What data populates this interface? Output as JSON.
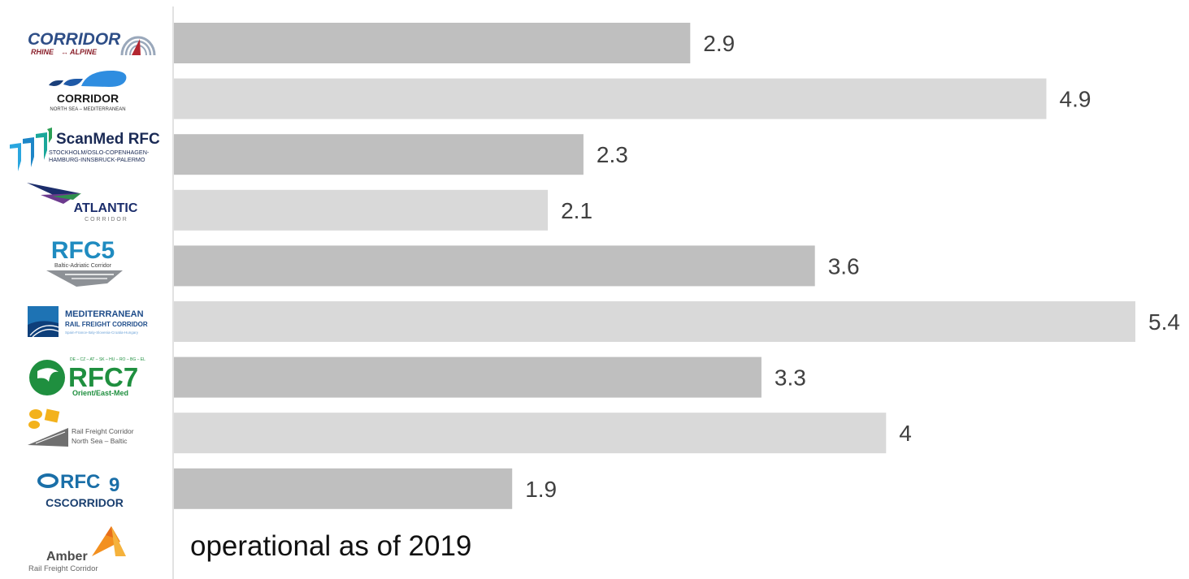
{
  "chart_data": {
    "type": "bar",
    "orientation": "horizontal",
    "categories": [
      "CORRIDOR RHINE-ALPINE",
      "CORRIDOR NORTH SEA - MEDITERRANEAN",
      "ScanMed RFC",
      "ATLANTIC CORRIDOR",
      "RFC5",
      "MEDITERRANEAN RAIL FREIGHT CORRIDOR",
      "RFC7",
      "Rail Freight Corridor North Sea – Baltic",
      "RFC9",
      "Amber Rail Freight Corridor"
    ],
    "values": [
      2.9,
      4.9,
      2.3,
      2.1,
      3.6,
      5.4,
      3.3,
      4,
      1.9,
      null
    ],
    "value_labels": [
      "2.9",
      "4.9",
      "2.3",
      "2.1",
      "3.6",
      "5.4",
      "3.3",
      "4",
      "1.9",
      ""
    ],
    "xlim": [
      0,
      5.4
    ],
    "grid": false,
    "bar_colors": [
      "#bfbfbf",
      "#d9d9d9"
    ],
    "title": "",
    "xlabel": "",
    "ylabel": ""
  },
  "note": "operational as of 2019",
  "logos": [
    {
      "icon": "rhine-alpine-logo",
      "lines": [
        "CORRIDOR",
        "RHINE",
        "ALPINE"
      ]
    },
    {
      "icon": "north-sea-med-logo",
      "lines": [
        "CORRIDOR",
        "NORTH SEA – MEDITERRANEAN"
      ]
    },
    {
      "icon": "scanmed-logo",
      "lines": [
        "ScanMed RFC",
        "STOCKHOLM/OSLO-COPENHAGEN-",
        "HAMBURG-INNSBRUCK-PALERMO"
      ]
    },
    {
      "icon": "atlantic-logo",
      "lines": [
        "ATLANTIC",
        "C O R R I D O R"
      ]
    },
    {
      "icon": "rfc5-logo",
      "lines": [
        "RFC5",
        "Baltic-Adriatic Corridor"
      ]
    },
    {
      "icon": "mediterranean-logo",
      "lines": [
        "MEDITERRANEAN",
        "RAIL FREIGHT CORRIDOR",
        "Spain-France-Italy-Slovenia-Croatia-Hungary"
      ]
    },
    {
      "icon": "rfc7-logo",
      "lines": [
        "DE – CZ – AT – SK – HU – RO – BG – EL",
        "RFC7",
        "Orient/East-Med"
      ]
    },
    {
      "icon": "north-sea-baltic-logo",
      "lines": [
        "Rail Freight Corridor",
        "North Sea – Baltic"
      ]
    },
    {
      "icon": "rfc9-logo",
      "lines": [
        "RFC",
        "9",
        "CSCORRIDOR"
      ]
    },
    {
      "icon": "amber-logo",
      "lines": [
        "Amber",
        "Rail Freight Corridor"
      ]
    }
  ]
}
